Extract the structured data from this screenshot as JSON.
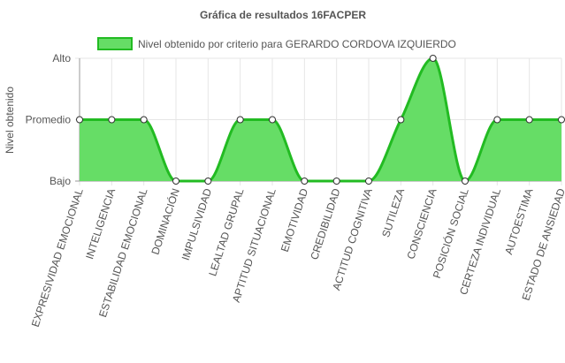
{
  "chart_data": {
    "type": "area",
    "title": "Gráfica de resultados 16FACPER",
    "xlabel": "",
    "ylabel": "Nivel obtenido",
    "y_levels": [
      "Bajo",
      "Promedio",
      "Alto"
    ],
    "grid": true,
    "legend_position": "top",
    "categories": [
      "EXPRESIVIDAD EMOCIONAL",
      "INTELIGENCIA",
      "ESTABILIDAD EMOCIONAL",
      "DOMINACIÓN",
      "IMPULSIVIDAD",
      "LEALTAD GRUPAL",
      "APTITUD SITUACIONAL",
      "EMOTIVIDAD",
      "CREDIBILIDAD",
      "ACTITUD COGNITIVA",
      "SUTILEZA",
      "CONSCIENCIA",
      "POSICIÓN SOCIAL",
      "CERTEZA INDIVIDUAL",
      "AUTOESTIMA",
      "ESTADO DE ANSIEDAD"
    ],
    "series": [
      {
        "name": "Nivel obtenido por criterio para GERARDO CORDOVA IZQUIERDO",
        "values": [
          "Promedio",
          "Promedio",
          "Promedio",
          "Bajo",
          "Bajo",
          "Promedio",
          "Promedio",
          "Bajo",
          "Bajo",
          "Bajo",
          "Promedio",
          "Alto",
          "Bajo",
          "Promedio",
          "Promedio",
          "Promedio"
        ],
        "fill_color": "#66dd66",
        "line_color": "#22bb22"
      }
    ]
  }
}
